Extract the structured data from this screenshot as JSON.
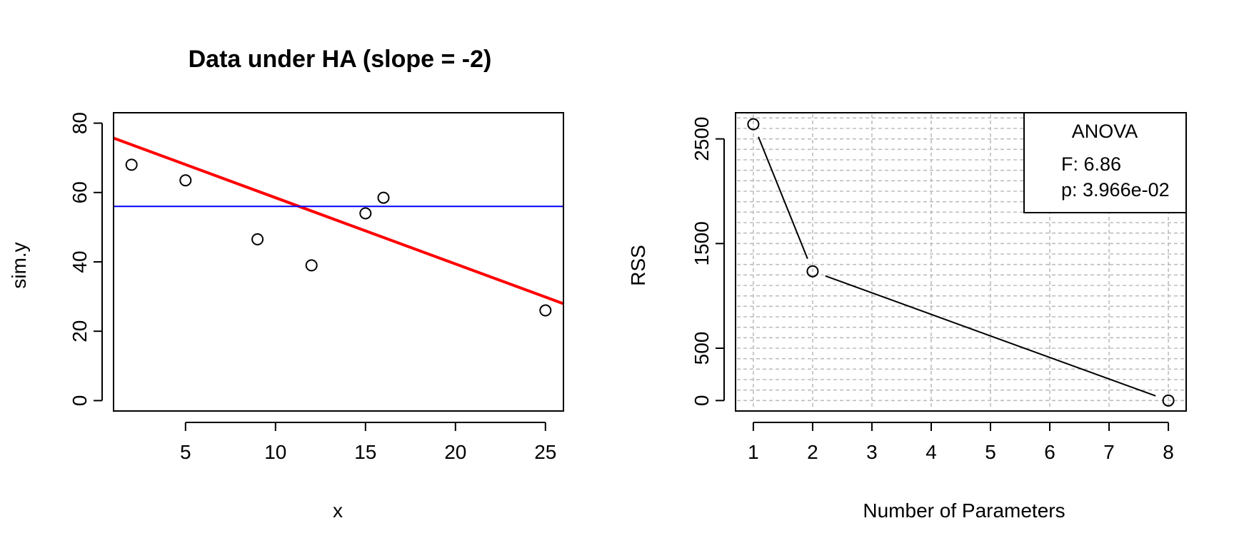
{
  "chart_data": [
    {
      "type": "scatter",
      "title": "Data under HA (slope = -2)",
      "xlabel": "x",
      "ylabel": "sim.y",
      "xlim": [
        1,
        26
      ],
      "ylim": [
        -3,
        83
      ],
      "xticks": [
        5,
        10,
        15,
        20,
        25
      ],
      "yticks": [
        0,
        20,
        40,
        60,
        80
      ],
      "points": [
        {
          "x": 2,
          "y": 68
        },
        {
          "x": 5,
          "y": 63.5
        },
        {
          "x": 9,
          "y": 46.5
        },
        {
          "x": 12,
          "y": 39
        },
        {
          "x": 15,
          "y": 54
        },
        {
          "x": 16,
          "y": 58.5
        },
        {
          "x": 25,
          "y": 26
        }
      ],
      "lines": [
        {
          "type": "fit",
          "color": "#ff0000",
          "intercept": 77.6,
          "slope": -1.91
        },
        {
          "type": "horizontal",
          "color": "#0000ff",
          "y": 56
        }
      ]
    },
    {
      "type": "line",
      "title": "",
      "xlabel": "Number of Parameters",
      "ylabel": "RSS",
      "xlim": [
        0.7,
        8.3
      ],
      "ylim": [
        -100,
        2750
      ],
      "xticks": [
        1,
        2,
        3,
        4,
        5,
        6,
        7,
        8
      ],
      "yticks": [
        0,
        500,
        1500,
        2500
      ],
      "grid": true,
      "points": [
        {
          "x": 1,
          "y": 2640
        },
        {
          "x": 2,
          "y": 1235
        },
        {
          "x": 8,
          "y": 0
        }
      ],
      "legend": {
        "position": "top-right",
        "title": "ANOVA",
        "entries": [
          "F: 6.86",
          "p: 3.966e-02"
        ]
      }
    }
  ]
}
